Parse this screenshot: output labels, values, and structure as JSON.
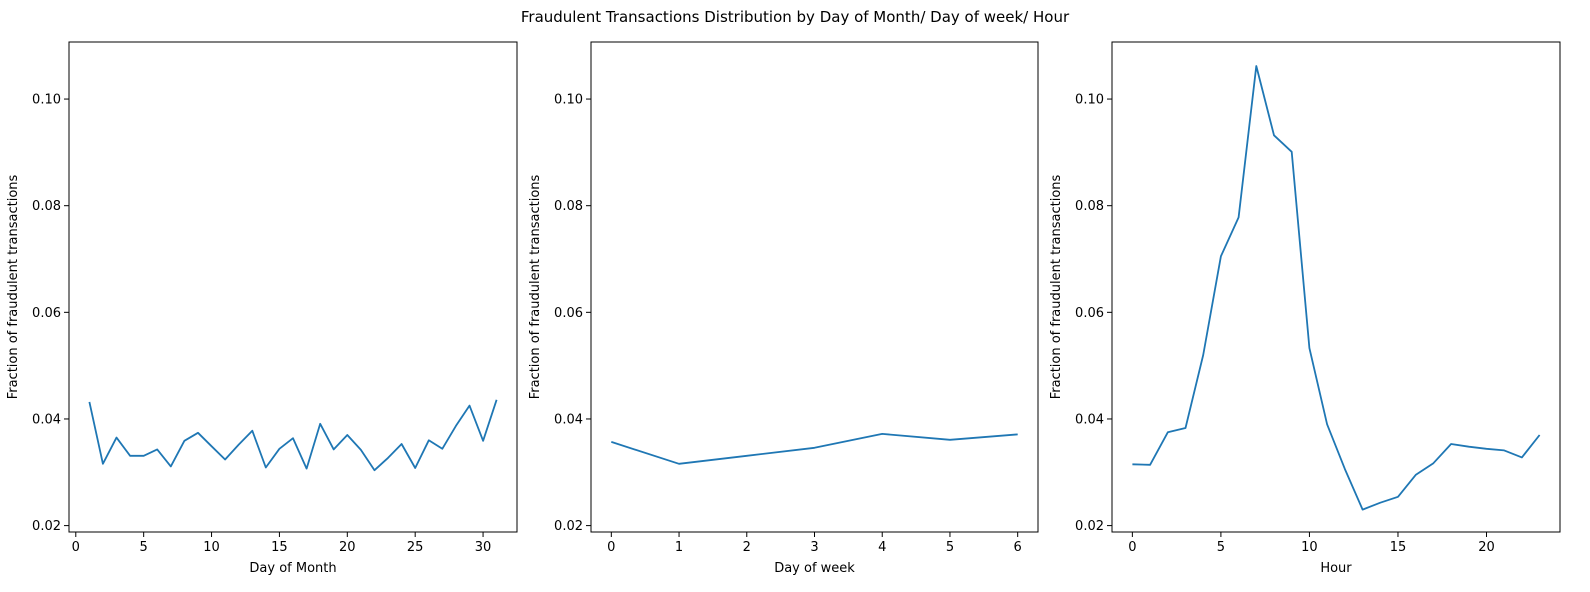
{
  "figure": {
    "suptitle": "Fraudulent Transactions Distribution by Day of Month/ Day of week/ Hour",
    "line_color": "#1f77b4"
  },
  "chart_data": [
    {
      "type": "line",
      "xlabel": "Day of Month",
      "ylabel": "Fraction of fraudulent transactions",
      "xlim": [
        -0.5,
        32.5
      ],
      "ylim": [
        0.0188,
        0.1107
      ],
      "xticks": [
        0,
        5,
        10,
        15,
        20,
        25,
        30
      ],
      "xtick_labels": [
        "0",
        "5",
        "10",
        "15",
        "20",
        "25",
        "30"
      ],
      "yticks": [
        0.02,
        0.04,
        0.06,
        0.08,
        0.1
      ],
      "ytick_labels": [
        "0.02",
        "0.04",
        "0.06",
        "0.08",
        "0.10"
      ],
      "grid": false,
      "x": [
        1,
        2,
        3,
        4,
        5,
        6,
        7,
        8,
        9,
        10,
        11,
        12,
        13,
        14,
        15,
        16,
        17,
        18,
        19,
        20,
        21,
        22,
        23,
        24,
        25,
        26,
        27,
        28,
        29,
        30,
        31
      ],
      "y": [
        0.0432,
        0.0316,
        0.0365,
        0.0331,
        0.0331,
        0.0343,
        0.0311,
        0.0359,
        0.0374,
        0.0349,
        0.0324,
        0.0352,
        0.0378,
        0.0309,
        0.0344,
        0.0364,
        0.0307,
        0.0391,
        0.0343,
        0.037,
        0.0342,
        0.0304,
        0.0327,
        0.0353,
        0.0308,
        0.036,
        0.0344,
        0.0387,
        0.0425,
        0.0359,
        0.0436
      ]
    },
    {
      "type": "line",
      "xlabel": "Day of week",
      "ylabel": "Fraction of fraudulent transactions",
      "xlim": [
        -0.3,
        6.3
      ],
      "ylim": [
        0.0188,
        0.1107
      ],
      "xticks": [
        0,
        1,
        2,
        3,
        4,
        5,
        6
      ],
      "xtick_labels": [
        "0",
        "1",
        "2",
        "3",
        "4",
        "5",
        "6"
      ],
      "yticks": [
        0.02,
        0.04,
        0.06,
        0.08,
        0.1
      ],
      "ytick_labels": [
        "0.02",
        "0.04",
        "0.06",
        "0.08",
        "0.10"
      ],
      "grid": false,
      "x": [
        0,
        1,
        2,
        3,
        4,
        5,
        6
      ],
      "y": [
        0.0357,
        0.0316,
        0.0331,
        0.0346,
        0.0372,
        0.0361,
        0.0371
      ]
    },
    {
      "type": "line",
      "xlabel": "Hour",
      "ylabel": "Fraction of fraudulent transactions",
      "xlim": [
        -1.15,
        24.15
      ],
      "ylim": [
        0.0188,
        0.1107
      ],
      "xticks": [
        0,
        5,
        10,
        15,
        20
      ],
      "xtick_labels": [
        "0",
        "5",
        "10",
        "15",
        "20"
      ],
      "yticks": [
        0.02,
        0.04,
        0.06,
        0.08,
        0.1
      ],
      "ytick_labels": [
        "0.02",
        "0.04",
        "0.06",
        "0.08",
        "0.10"
      ],
      "grid": false,
      "x": [
        0,
        1,
        2,
        3,
        4,
        5,
        6,
        7,
        8,
        9,
        10,
        11,
        12,
        13,
        14,
        15,
        16,
        17,
        18,
        19,
        20,
        21,
        22,
        23
      ],
      "y": [
        0.0315,
        0.0314,
        0.0375,
        0.0383,
        0.052,
        0.0705,
        0.0778,
        0.1062,
        0.0932,
        0.0901,
        0.0533,
        0.039,
        0.0306,
        0.023,
        0.0243,
        0.0254,
        0.0295,
        0.0317,
        0.0353,
        0.0348,
        0.0344,
        0.0341,
        0.0328,
        0.037
      ]
    }
  ]
}
